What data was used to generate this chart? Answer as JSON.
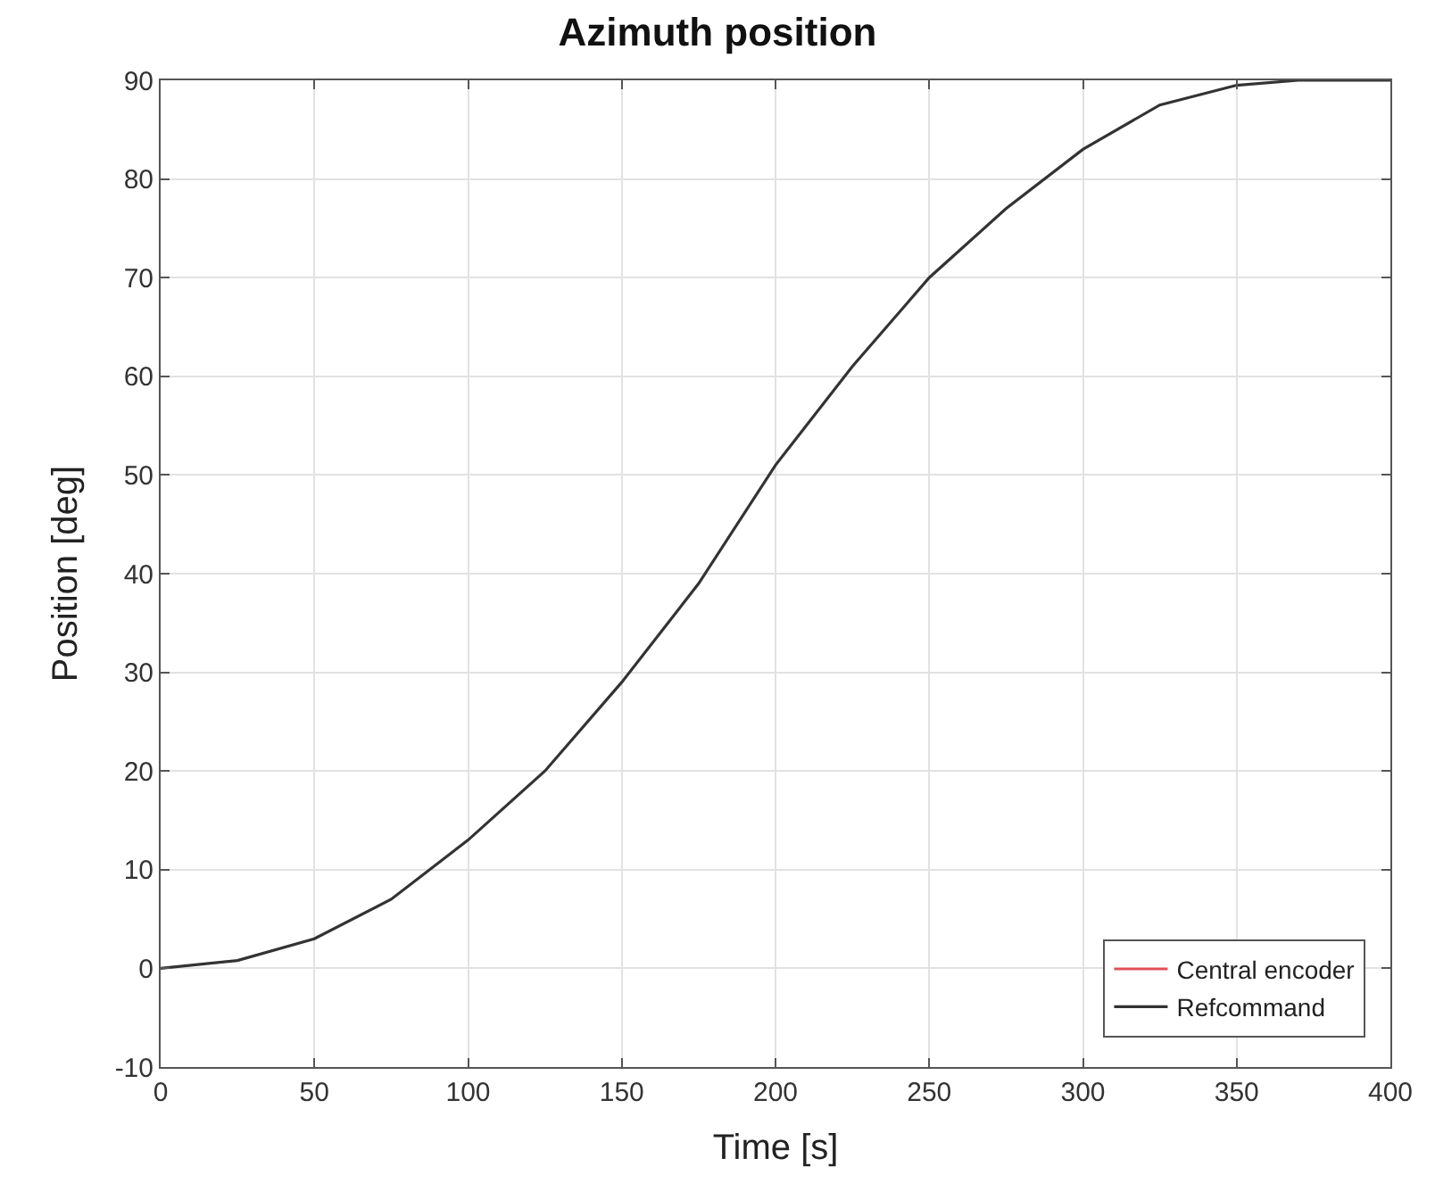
{
  "chart_data": {
    "type": "line",
    "title": "Azimuth position",
    "xlabel": "Time [s]",
    "ylabel": "Position [deg]",
    "x": [
      0,
      25,
      50,
      75,
      100,
      125,
      150,
      175,
      200,
      225,
      250,
      275,
      300,
      325,
      350,
      370,
      400
    ],
    "series": [
      {
        "name": "Central encoder",
        "color": "#e0505a",
        "values": [
          null,
          null,
          null,
          null,
          null,
          null,
          null,
          null,
          null,
          null,
          null,
          null,
          null,
          null,
          null,
          null,
          null
        ]
      },
      {
        "name": "Refcommand",
        "color": "#333333",
        "values": [
          0,
          0.8,
          3,
          7,
          13,
          20,
          29,
          39,
          51,
          61,
          70,
          77,
          83,
          87.5,
          89.5,
          90,
          90
        ]
      }
    ],
    "xlim": [
      0,
      400
    ],
    "xticks": [
      0,
      50,
      100,
      150,
      200,
      250,
      300,
      350,
      400
    ],
    "ylim": [
      -10,
      90
    ],
    "yticks": [
      -10,
      0,
      10,
      20,
      30,
      40,
      50,
      60,
      70,
      80,
      90
    ],
    "grid": true,
    "legend": "bottom right",
    "marker": "none",
    "line_style": "solid"
  }
}
